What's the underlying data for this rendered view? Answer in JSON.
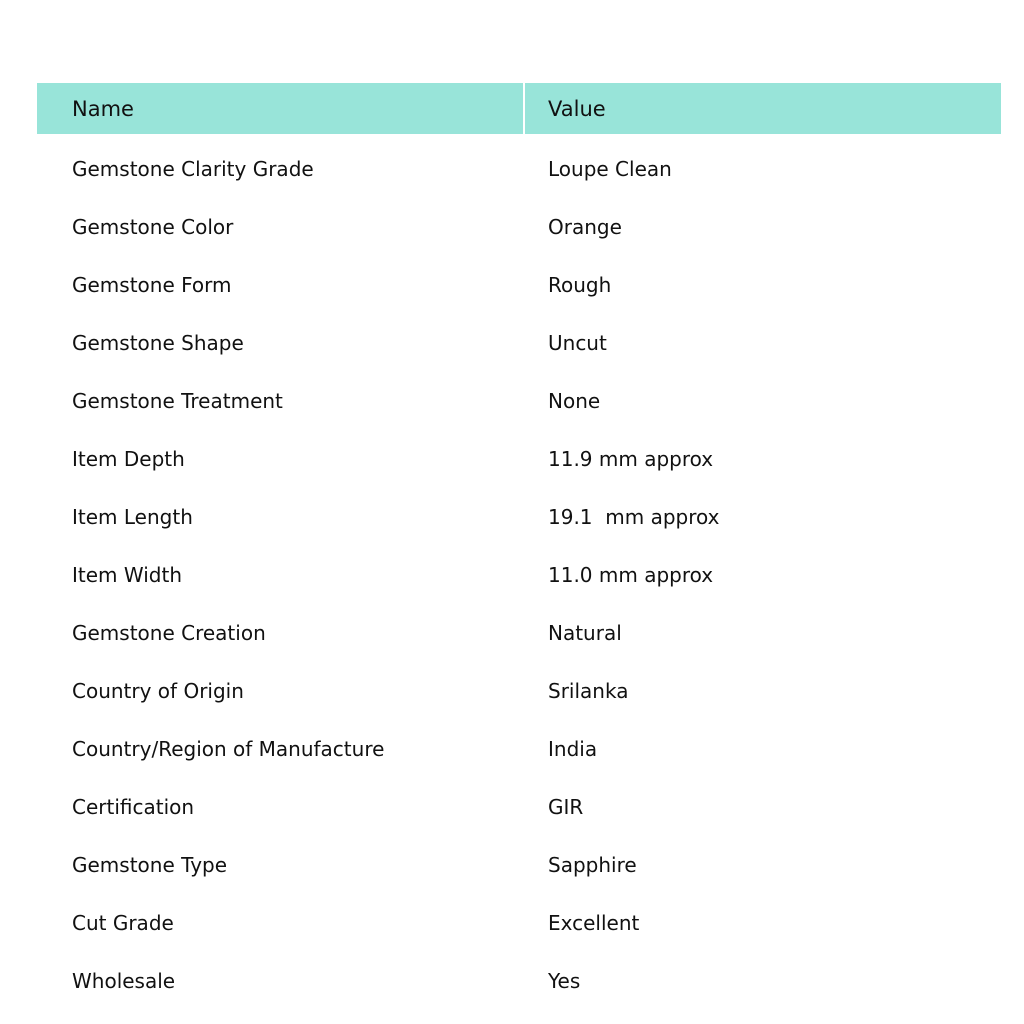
{
  "table": {
    "headers": [
      "Name",
      "Value"
    ],
    "rows": [
      [
        "Gemstone Clarity Grade",
        "Loupe Clean"
      ],
      [
        "Gemstone Color",
        "Orange"
      ],
      [
        "Gemstone Form",
        "Rough"
      ],
      [
        "Gemstone Shape",
        "Uncut"
      ],
      [
        "Gemstone Treatment",
        "None"
      ],
      [
        "Item Depth",
        "11.9 mm approx"
      ],
      [
        "Item Length",
        "19.1  mm approx"
      ],
      [
        "Item Width",
        "11.0 mm approx"
      ],
      [
        "Gemstone Creation",
        "Natural"
      ],
      [
        "Country of Origin",
        "Srilanka"
      ],
      [
        "Country/Region of Manufacture",
        "India"
      ],
      [
        "Certification",
        "GIR"
      ],
      [
        "Gemstone Type",
        "Sapphire"
      ],
      [
        "Cut Grade",
        "Excellent"
      ],
      [
        "Wholesale",
        "Yes"
      ]
    ]
  },
  "colors": {
    "header_bg": "#98e4d9",
    "stripe_bg": "#f2f2f2"
  }
}
